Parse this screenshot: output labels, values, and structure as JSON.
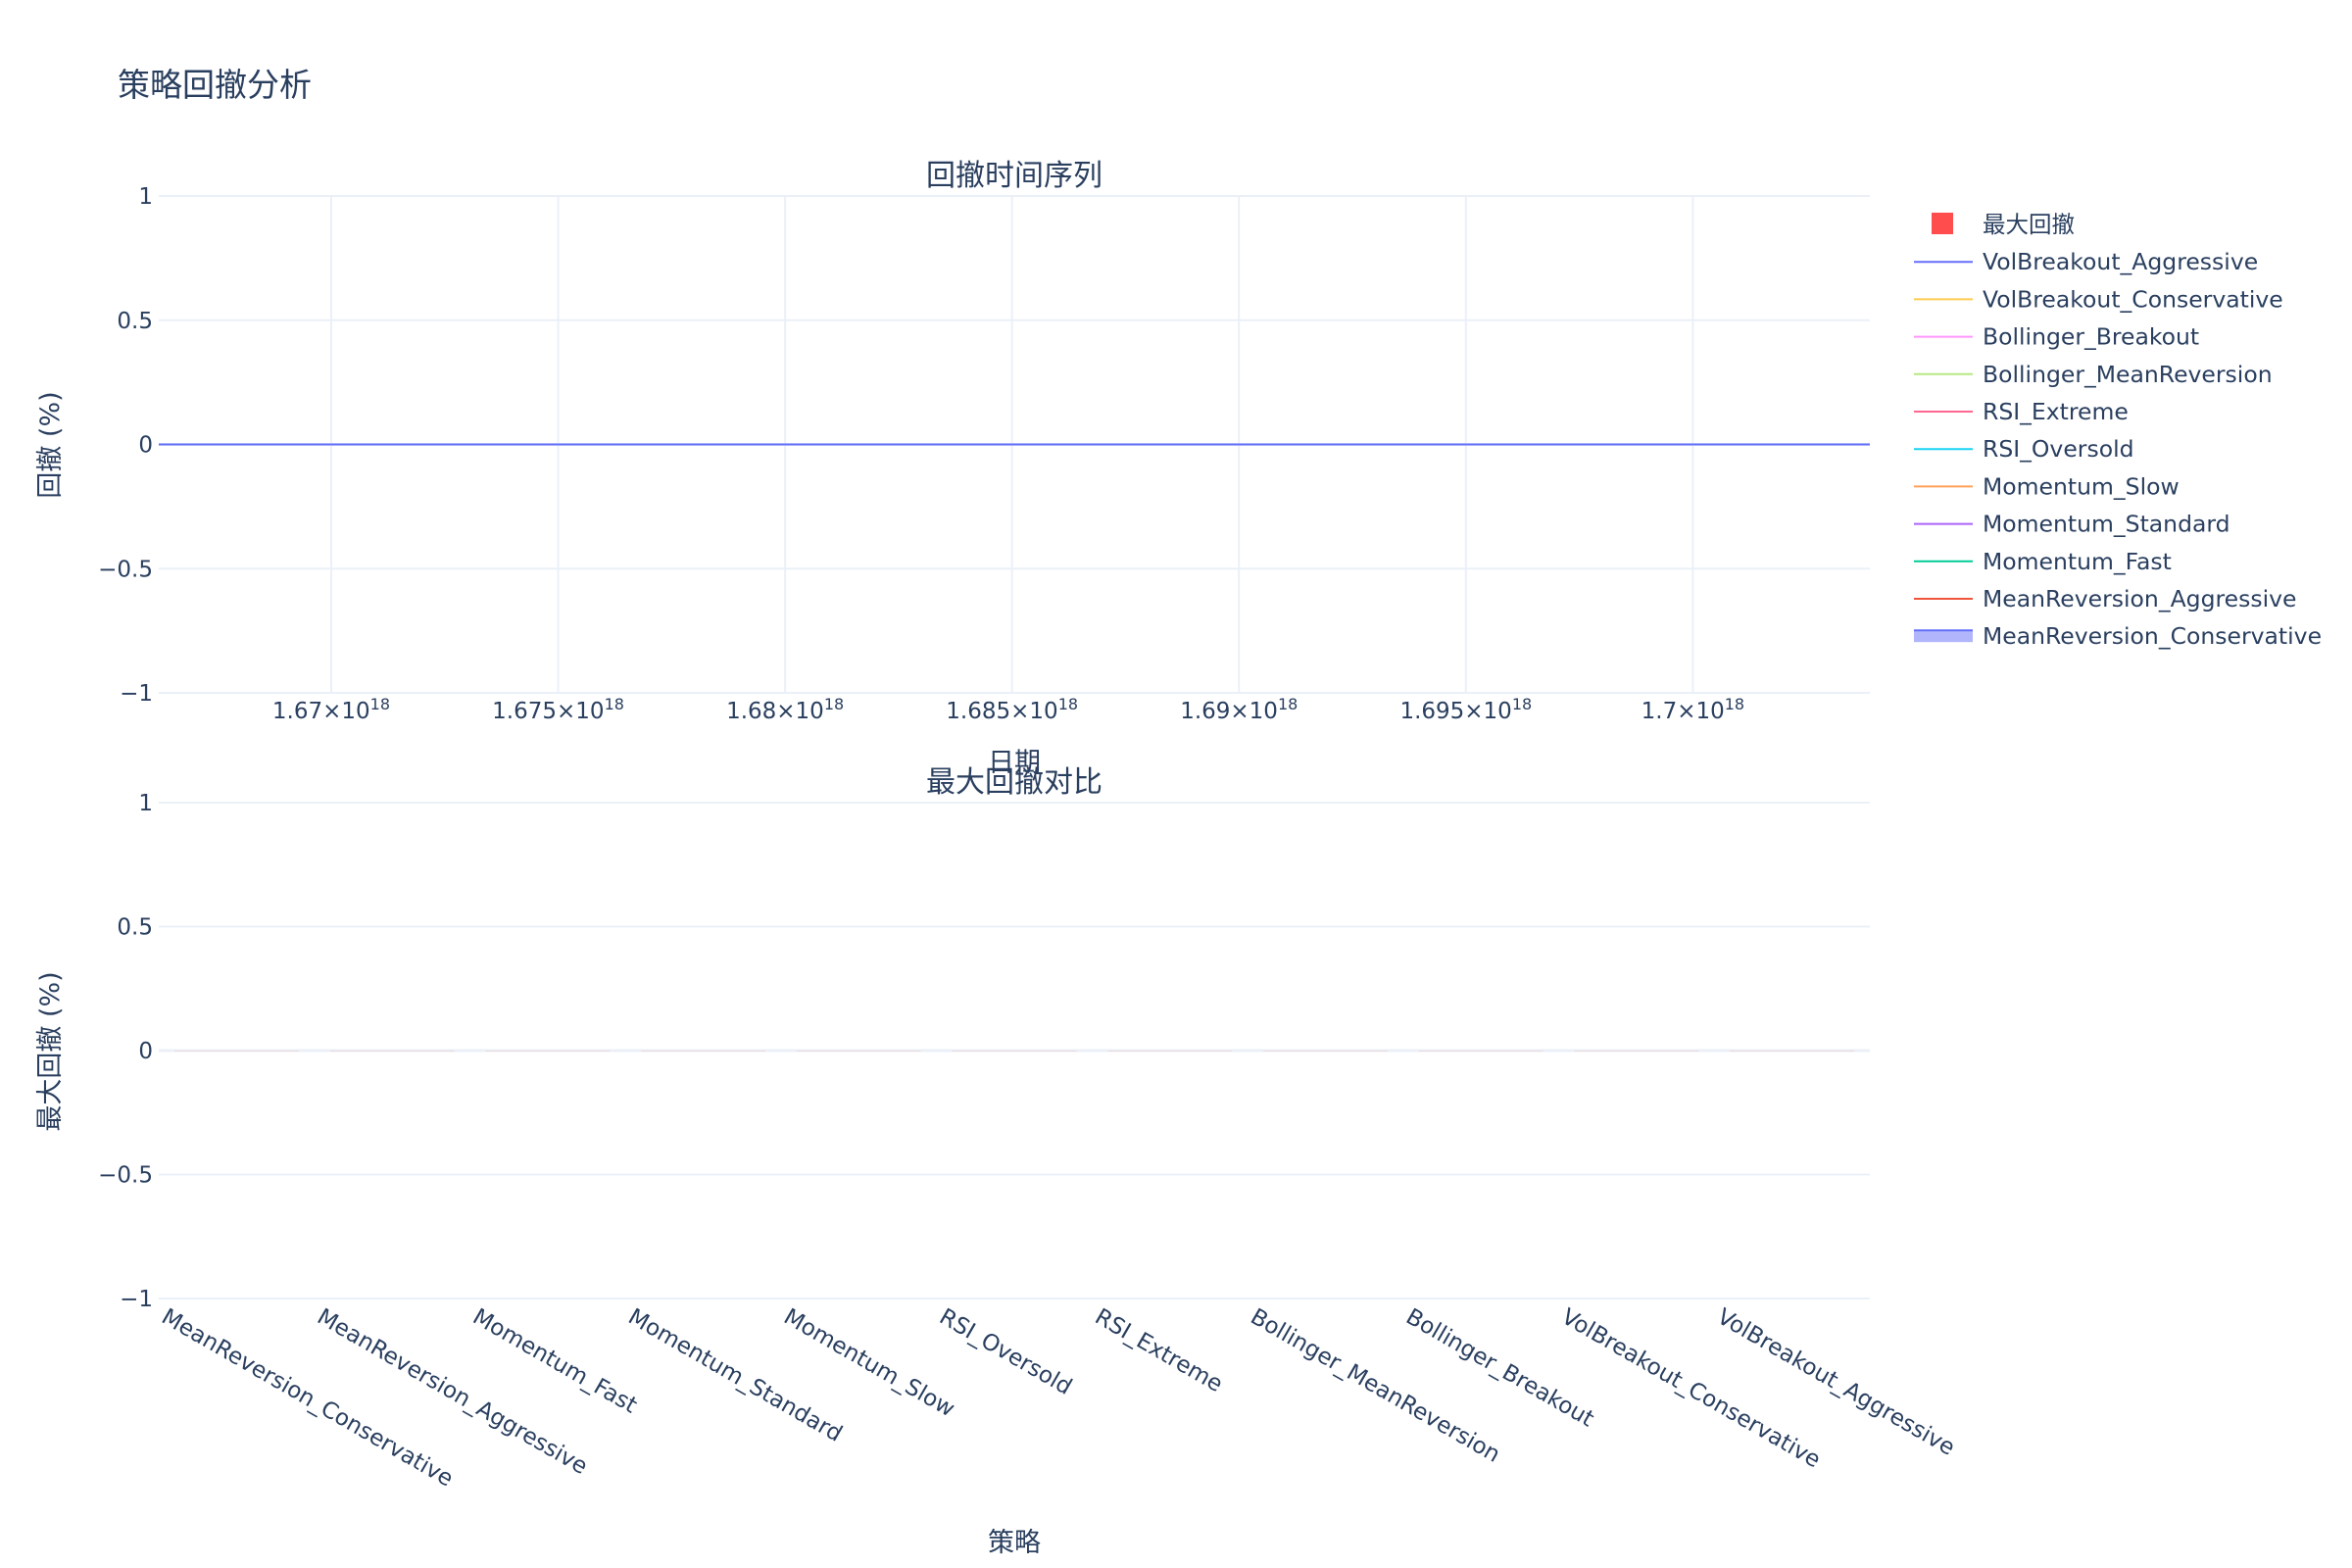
{
  "title": "策略回撤分析",
  "chart_data": [
    {
      "type": "line",
      "title": "回撤时间序列",
      "xlabel": "日期",
      "ylabel": "回撤 (%)",
      "ylim": [
        -1,
        1
      ],
      "yticks": [
        "1",
        "0.5",
        "0",
        "−0.5",
        "−1"
      ],
      "xticks": [
        {
          "mant": "1.67",
          "exp": "18",
          "value": 1.67e+18
        },
        {
          "mant": "1.675",
          "exp": "18",
          "value": 1.675e+18
        },
        {
          "mant": "1.68",
          "exp": "18",
          "value": 1.68e+18
        },
        {
          "mant": "1.685",
          "exp": "18",
          "value": 1.685e+18
        },
        {
          "mant": "1.69",
          "exp": "18",
          "value": 1.69e+18
        },
        {
          "mant": "1.695",
          "exp": "18",
          "value": 1.695e+18
        },
        {
          "mant": "1.7",
          "exp": "18",
          "value": 1.7e+18
        }
      ],
      "xlim": [
        1.6662e+18,
        1.7039e+18
      ],
      "grid": true,
      "series": [
        {
          "name": "VolBreakout_Aggressive",
          "color": "#636efa",
          "x": [
            1.6662e+18,
            1.7039e+18
          ],
          "values": [
            0,
            0
          ]
        },
        {
          "name": "VolBreakout_Conservative",
          "color": "#fecb52",
          "x": [
            1.6662e+18,
            1.7039e+18
          ],
          "values": [
            0,
            0
          ]
        },
        {
          "name": "Bollinger_Breakout",
          "color": "#ff97ff",
          "x": [
            1.6662e+18,
            1.7039e+18
          ],
          "values": [
            0,
            0
          ]
        },
        {
          "name": "Bollinger_MeanReversion",
          "color": "#b6e880",
          "x": [
            1.6662e+18,
            1.7039e+18
          ],
          "values": [
            0,
            0
          ]
        },
        {
          "name": "RSI_Extreme",
          "color": "#ff6692",
          "x": [
            1.6662e+18,
            1.7039e+18
          ],
          "values": [
            0,
            0
          ]
        },
        {
          "name": "RSI_Oversold",
          "color": "#19d3f3",
          "x": [
            1.6662e+18,
            1.7039e+18
          ],
          "values": [
            0,
            0
          ]
        },
        {
          "name": "Momentum_Slow",
          "color": "#ffa15a",
          "x": [
            1.6662e+18,
            1.7039e+18
          ],
          "values": [
            0,
            0
          ]
        },
        {
          "name": "Momentum_Standard",
          "color": "#ab63fa",
          "x": [
            1.6662e+18,
            1.7039e+18
          ],
          "values": [
            0,
            0
          ]
        },
        {
          "name": "Momentum_Fast",
          "color": "#00cc96",
          "x": [
            1.6662e+18,
            1.7039e+18
          ],
          "values": [
            0,
            0
          ]
        },
        {
          "name": "MeanReversion_Aggressive",
          "color": "#ef553b",
          "x": [
            1.6662e+18,
            1.7039e+18
          ],
          "values": [
            0,
            0
          ]
        },
        {
          "name": "MeanReversion_Conservative",
          "color": "#636efa",
          "x": [
            1.6662e+18,
            1.7039e+18
          ],
          "values": [
            0,
            0
          ]
        }
      ]
    },
    {
      "type": "bar",
      "title": "最大回撤对比",
      "xlabel": "策略",
      "ylabel": "最大回撤 (%)",
      "ylim": [
        -1,
        1
      ],
      "yticks": [
        "1",
        "0.5",
        "0",
        "−0.5",
        "−1"
      ],
      "grid": true,
      "categories": [
        "MeanReversion_Conservative",
        "MeanReversion_Aggressive",
        "Momentum_Fast",
        "Momentum_Standard",
        "Momentum_Slow",
        "RSI_Oversold",
        "RSI_Extreme",
        "Bollinger_MeanReversion",
        "Bollinger_Breakout",
        "VolBreakout_Conservative",
        "VolBreakout_Aggressive"
      ],
      "series": [
        {
          "name": "最大回撤",
          "color": "#ef553b",
          "values": [
            0,
            0,
            0,
            0,
            0,
            0,
            0,
            0,
            0,
            0,
            0
          ]
        }
      ]
    }
  ],
  "legend": {
    "placement": "right",
    "items": [
      {
        "name": "最大回撤",
        "kind": "bar",
        "color": "#ff4d4d"
      },
      {
        "name": "VolBreakout_Aggressive",
        "kind": "line",
        "color": "#636efa"
      },
      {
        "name": "VolBreakout_Conservative",
        "kind": "line",
        "color": "#fecb52"
      },
      {
        "name": "Bollinger_Breakout",
        "kind": "line",
        "color": "#ff97ff"
      },
      {
        "name": "Bollinger_MeanReversion",
        "kind": "line",
        "color": "#b6e880"
      },
      {
        "name": "RSI_Extreme",
        "kind": "line",
        "color": "#ff6692"
      },
      {
        "name": "RSI_Oversold",
        "kind": "line",
        "color": "#19d3f3"
      },
      {
        "name": "Momentum_Slow",
        "kind": "line",
        "color": "#ffa15a"
      },
      {
        "name": "Momentum_Standard",
        "kind": "line",
        "color": "#ab63fa"
      },
      {
        "name": "Momentum_Fast",
        "kind": "line",
        "color": "#00cc96"
      },
      {
        "name": "MeanReversion_Aggressive",
        "kind": "line",
        "color": "#ef553b"
      },
      {
        "name": "MeanReversion_Conservative",
        "kind": "area",
        "color": "#636efa"
      }
    ]
  }
}
